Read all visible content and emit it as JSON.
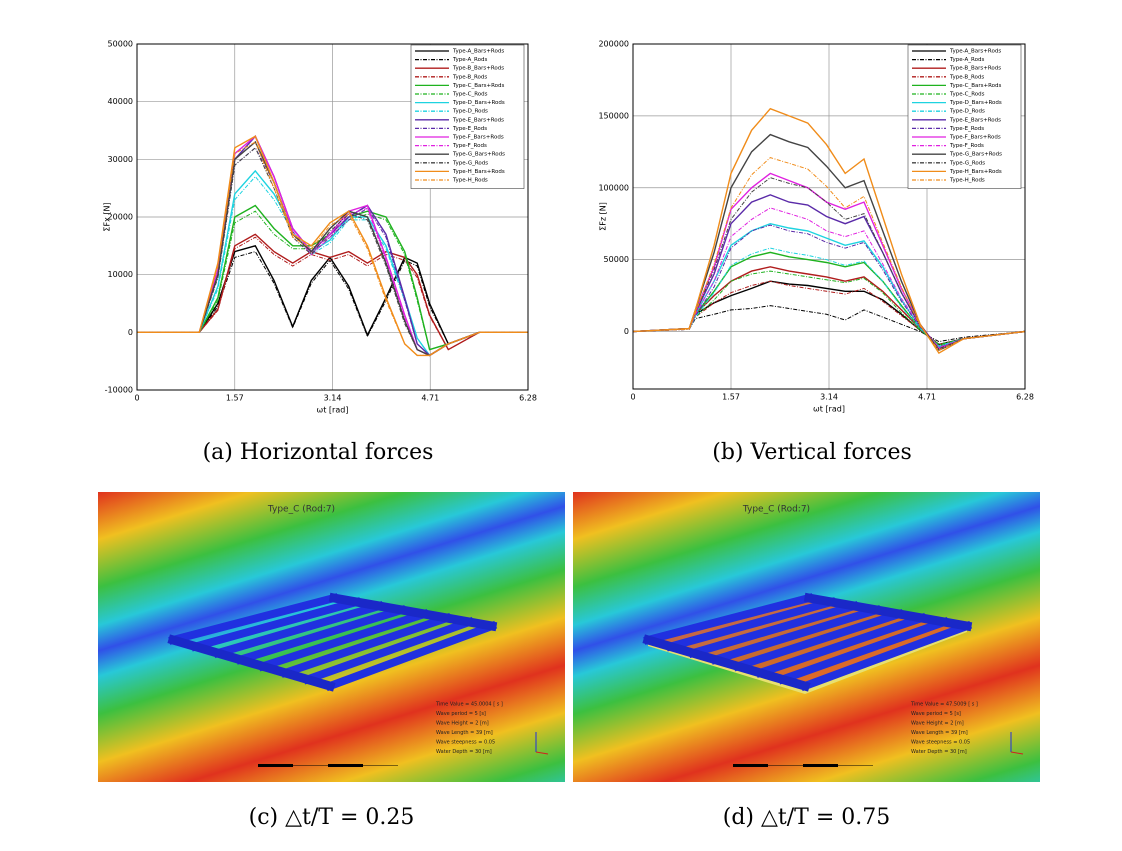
{
  "chart_data": [
    {
      "type": "line",
      "caption": "(a) Horizontal forces",
      "xlabel": "ωt [rad]",
      "ylabel": "ΣFx [N]",
      "xlim": [
        0,
        6.28
      ],
      "xticks": [
        0,
        1.57,
        3.14,
        4.71,
        6.28
      ],
      "ylim": [
        -10000,
        50000
      ],
      "yticks": [
        -10000,
        0,
        10000,
        20000,
        30000,
        40000,
        50000
      ],
      "grid": true,
      "legend": "upper-right",
      "x": [
        0,
        1.0,
        1.3,
        1.57,
        1.9,
        2.2,
        2.5,
        2.8,
        3.1,
        3.4,
        3.7,
        4.0,
        4.3,
        4.5,
        4.7,
        5.0,
        5.5,
        6.28
      ],
      "series": [
        {
          "name": "Type-A_Bars+Rods",
          "color": "#000000",
          "style": "solid",
          "values": [
            0,
            0,
            5000,
            14000,
            15000,
            9000,
            1000,
            9000,
            13000,
            8000,
            -500,
            6000,
            13000,
            12000,
            5000,
            -2000,
            0,
            0
          ]
        },
        {
          "name": "Type-A_Rods",
          "color": "#000000",
          "style": "dashdot",
          "values": [
            0,
            0,
            4500,
            13000,
            14000,
            8500,
            800,
            8500,
            12500,
            7500,
            -700,
            5500,
            12500,
            11500,
            4500,
            -2000,
            0,
            0
          ]
        },
        {
          "name": "Type-B_Bars+Rods",
          "color": "#b01c1c",
          "style": "solid",
          "values": [
            0,
            0,
            4000,
            15000,
            17000,
            14000,
            12000,
            14000,
            13000,
            14000,
            12000,
            14000,
            13000,
            10000,
            3000,
            -3000,
            0,
            0
          ]
        },
        {
          "name": "Type-B_Rods",
          "color": "#b01c1c",
          "style": "dashdot",
          "values": [
            0,
            0,
            3800,
            14500,
            16500,
            13500,
            11500,
            13500,
            12500,
            13500,
            11500,
            13500,
            12500,
            9500,
            2800,
            -3000,
            0,
            0
          ]
        },
        {
          "name": "Type-C_Bars+Rods",
          "color": "#1fb21f",
          "style": "solid",
          "values": [
            0,
            0,
            6000,
            20000,
            22000,
            18000,
            15000,
            15000,
            17000,
            20000,
            21000,
            20000,
            14000,
            6000,
            -3000,
            -2000,
            0,
            0
          ]
        },
        {
          "name": "Type-C_Rods",
          "color": "#1fb21f",
          "style": "dashdot",
          "values": [
            0,
            0,
            5500,
            19000,
            21000,
            17000,
            14500,
            14500,
            16500,
            19500,
            20500,
            19500,
            13500,
            5500,
            -3000,
            -2000,
            0,
            0
          ]
        },
        {
          "name": "Type-D_Bars+Rods",
          "color": "#1ed3e0",
          "style": "solid",
          "values": [
            0,
            0,
            8000,
            24000,
            28000,
            24000,
            18000,
            14000,
            16000,
            20000,
            20000,
            15000,
            6000,
            -1000,
            -4000,
            -2000,
            0,
            0
          ]
        },
        {
          "name": "Type-D_Rods",
          "color": "#1ed3e0",
          "style": "dashdot",
          "values": [
            0,
            0,
            7500,
            23000,
            27000,
            23000,
            17500,
            13500,
            15500,
            19500,
            19500,
            14500,
            5500,
            -1000,
            -4000,
            -2000,
            0,
            0
          ]
        },
        {
          "name": "Type-E_Bars+Rods",
          "color": "#5a2aa8",
          "style": "solid",
          "values": [
            0,
            0,
            10000,
            30000,
            34000,
            27000,
            18000,
            14000,
            17000,
            20000,
            22000,
            17000,
            6000,
            -2000,
            -4000,
            -2000,
            0,
            0
          ]
        },
        {
          "name": "Type-E_Rods",
          "color": "#5a2aa8",
          "style": "dashdot",
          "values": [
            0,
            0,
            9500,
            29000,
            32000,
            26000,
            17500,
            13500,
            16500,
            19500,
            21500,
            16500,
            5500,
            -2000,
            -4000,
            -2000,
            0,
            0
          ]
        },
        {
          "name": "Type-F_Bars+Rods",
          "color": "#e020e0",
          "style": "solid",
          "values": [
            0,
            0,
            11000,
            31000,
            34000,
            27000,
            18000,
            14000,
            17000,
            21000,
            22000,
            13000,
            3000,
            -3000,
            -4000,
            -2000,
            0,
            0
          ]
        },
        {
          "name": "Type-F_Rods",
          "color": "#e020e0",
          "style": "dashdot",
          "values": [
            0,
            0,
            10500,
            30000,
            33000,
            26000,
            17500,
            13500,
            16500,
            20500,
            21500,
            12500,
            2500,
            -3000,
            -4000,
            -2000,
            0,
            0
          ]
        },
        {
          "name": "Type-G_Bars+Rods",
          "color": "#444444",
          "style": "solid",
          "values": [
            0,
            0,
            10000,
            30000,
            33000,
            26000,
            17000,
            14000,
            18000,
            21000,
            20000,
            12000,
            2000,
            -3000,
            -4000,
            -2000,
            0,
            0
          ]
        },
        {
          "name": "Type-G_Rods",
          "color": "#444444",
          "style": "dashdot",
          "values": [
            0,
            0,
            9500,
            29000,
            32000,
            25000,
            16500,
            13500,
            17500,
            20500,
            19500,
            11500,
            1500,
            -3000,
            -4000,
            -2000,
            0,
            0
          ]
        },
        {
          "name": "Type-H_Bars+Rods",
          "color": "#f08c1a",
          "style": "solid",
          "values": [
            0,
            0,
            12000,
            32000,
            34000,
            26000,
            17000,
            15000,
            19000,
            21000,
            15000,
            6000,
            -2000,
            -4000,
            -4000,
            -2000,
            0,
            0
          ]
        },
        {
          "name": "Type-H_Rods",
          "color": "#f08c1a",
          "style": "dashdot",
          "values": [
            0,
            0,
            11500,
            31000,
            33000,
            25000,
            16500,
            14500,
            18500,
            20500,
            14500,
            5500,
            -2000,
            -4000,
            -4000,
            -2000,
            0,
            0
          ]
        }
      ]
    },
    {
      "type": "line",
      "caption": "(b) Vertical forces",
      "xlabel": "ωt [rad]",
      "ylabel": "ΣFz [N]",
      "xlim": [
        0,
        6.28
      ],
      "xticks": [
        0,
        1.57,
        3.14,
        4.71,
        6.28
      ],
      "ylim": [
        -40000,
        200000
      ],
      "yticks": [
        0,
        50000,
        100000,
        150000,
        200000
      ],
      "grid": true,
      "legend": "upper-right",
      "x": [
        0,
        0.9,
        1.0,
        1.3,
        1.57,
        1.9,
        2.2,
        2.5,
        2.8,
        3.1,
        3.4,
        3.7,
        4.0,
        4.3,
        4.6,
        4.9,
        5.3,
        6.28
      ],
      "series": [
        {
          "name": "Type-A_Bars+Rods",
          "color": "#000000",
          "style": "solid",
          "values": [
            0,
            2000,
            12000,
            20000,
            25000,
            30000,
            35000,
            33000,
            32000,
            30000,
            28000,
            28000,
            22000,
            12000,
            1000,
            -9000,
            -5000,
            0
          ]
        },
        {
          "name": "Type-A_Rods",
          "color": "#000000",
          "style": "dashdot",
          "values": [
            0,
            1500,
            9000,
            12000,
            15000,
            16000,
            18000,
            16000,
            14000,
            12000,
            8000,
            15000,
            10000,
            5000,
            0,
            -7000,
            -4000,
            0
          ]
        },
        {
          "name": "Type-B_Bars+Rods",
          "color": "#b01c1c",
          "style": "solid",
          "values": [
            0,
            2000,
            12000,
            25000,
            35000,
            42000,
            45000,
            42000,
            40000,
            38000,
            35000,
            38000,
            28000,
            15000,
            2000,
            -10000,
            -5000,
            0
          ]
        },
        {
          "name": "Type-B_Rods",
          "color": "#b01c1c",
          "style": "dashdot",
          "values": [
            0,
            1500,
            10000,
            20000,
            27000,
            32000,
            35000,
            32000,
            30000,
            28000,
            26000,
            30000,
            21000,
            11000,
            1000,
            -9000,
            -5000,
            0
          ]
        },
        {
          "name": "Type-C_Bars+Rods",
          "color": "#1fb21f",
          "style": "solid",
          "values": [
            0,
            2000,
            12000,
            28000,
            45000,
            52000,
            55000,
            52000,
            50000,
            48000,
            45000,
            48000,
            35000,
            18000,
            2000,
            -10000,
            -5000,
            0
          ]
        },
        {
          "name": "Type-C_Rods",
          "color": "#1fb21f",
          "style": "dashdot",
          "values": [
            0,
            1500,
            10000,
            22000,
            35000,
            40000,
            42000,
            40000,
            38000,
            36000,
            34000,
            37000,
            27000,
            13000,
            1000,
            -9000,
            -5000,
            0
          ]
        },
        {
          "name": "Type-D_Bars+Rods",
          "color": "#1ed3e0",
          "style": "solid",
          "values": [
            0,
            2000,
            12000,
            35000,
            60000,
            70000,
            75000,
            72000,
            70000,
            65000,
            60000,
            63000,
            45000,
            22000,
            3000,
            -11000,
            -5000,
            0
          ]
        },
        {
          "name": "Type-D_Rods",
          "color": "#1ed3e0",
          "style": "dashdot",
          "values": [
            0,
            1500,
            10000,
            27000,
            46000,
            54000,
            58000,
            55000,
            53000,
            50000,
            46000,
            49000,
            35000,
            17000,
            2000,
            -10000,
            -5000,
            0
          ]
        },
        {
          "name": "Type-E_Bars+Rods",
          "color": "#5a2aa8",
          "style": "solid",
          "values": [
            0,
            2000,
            13000,
            40000,
            75000,
            90000,
            95000,
            90000,
            88000,
            80000,
            75000,
            80000,
            55000,
            27000,
            4000,
            -12000,
            -5000,
            0
          ]
        },
        {
          "name": "Type-E_Rods",
          "color": "#5a2aa8",
          "style": "dashdot",
          "values": [
            0,
            1500,
            11000,
            31000,
            58000,
            70000,
            74000,
            70000,
            68000,
            62000,
            58000,
            62000,
            43000,
            21000,
            3000,
            -11000,
            -5000,
            0
          ]
        },
        {
          "name": "Type-F_Bars+Rods",
          "color": "#e020e0",
          "style": "solid",
          "values": [
            0,
            2000,
            14000,
            45000,
            85000,
            100000,
            110000,
            105000,
            100000,
            90000,
            85000,
            90000,
            60000,
            30000,
            5000,
            -12000,
            -5000,
            0
          ]
        },
        {
          "name": "Type-F_Rods",
          "color": "#e020e0",
          "style": "dashdot",
          "values": [
            0,
            1500,
            12000,
            35000,
            66000,
            78000,
            86000,
            82000,
            78000,
            70000,
            66000,
            70000,
            47000,
            23000,
            4000,
            -11000,
            -5000,
            0
          ]
        },
        {
          "name": "Type-G_Bars+Rods",
          "color": "#444444",
          "style": "solid",
          "values": [
            0,
            2000,
            15000,
            55000,
            100000,
            125000,
            137000,
            132000,
            128000,
            115000,
            100000,
            105000,
            70000,
            35000,
            5000,
            -13000,
            -5000,
            0
          ]
        },
        {
          "name": "Type-G_Rods",
          "color": "#444444",
          "style": "dashdot",
          "values": [
            0,
            1500,
            13000,
            43000,
            78000,
            97000,
            107000,
            103000,
            100000,
            90000,
            78000,
            82000,
            55000,
            27000,
            4000,
            -12000,
            -5000,
            0
          ]
        },
        {
          "name": "Type-H_Bars+Rods",
          "color": "#f08c1a",
          "style": "solid",
          "values": [
            0,
            2000,
            15000,
            60000,
            110000,
            140000,
            155000,
            150000,
            145000,
            130000,
            110000,
            120000,
            80000,
            40000,
            5000,
            -15000,
            -5000,
            0
          ]
        },
        {
          "name": "Type-H_Rods",
          "color": "#f08c1a",
          "style": "dashdot",
          "values": [
            0,
            1500,
            13000,
            47000,
            86000,
            109000,
            121000,
            117000,
            113000,
            101000,
            86000,
            94000,
            62000,
            31000,
            4000,
            -13000,
            -5000,
            0
          ]
        }
      ]
    }
  ],
  "panels": [
    {
      "caption": "(c) △t/T = 0.25",
      "title": "Type_C (Rod:7)",
      "info": [
        "Time Value = 45.0004 [ s ]",
        "Wave period = 5 [s]",
        "Wave Height = 2 [m]",
        "Wave Length = 39 [m]",
        "Wave steepness = 0.05",
        "Water Depth = 30 [m]"
      ]
    },
    {
      "caption": "(d) △t/T = 0.75",
      "title": "Type_C (Rod:7)",
      "info": [
        "Time Value = 47.5009 [ s ]",
        "Wave period = 5 [s]",
        "Wave Height = 2 [m]",
        "Wave Length = 39 [m]",
        "Wave steepness = 0.05",
        "Water Depth = 30 [m]"
      ]
    }
  ]
}
